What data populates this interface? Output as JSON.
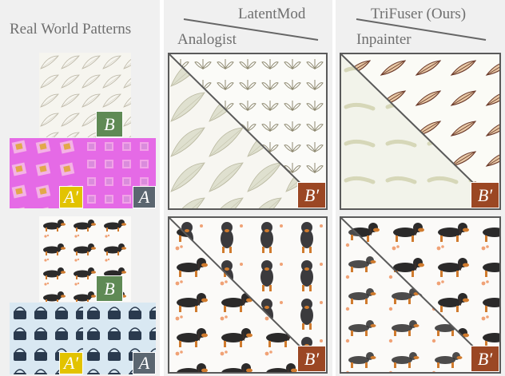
{
  "headers": {
    "real_world": "Real World Patterns",
    "latentmod": "LatentMod",
    "analogist": "Analogist",
    "trifuser": "TriFuser (Ours)",
    "inpainter": "Inpainter"
  },
  "labels": {
    "b": "B",
    "a_prime": "A′",
    "a": "A",
    "b_prime": "B′"
  },
  "colors": {
    "label_b": "#5f8a55",
    "label_a_prime": "#e2c300",
    "label_a": "#5b6670",
    "label_b_prime": "#9b4724",
    "column_background": "#f0f0f0",
    "frame_border": "#5a5a5a"
  },
  "rows": [
    {
      "b_pattern": "leaf-outline-pattern",
      "a_prime_pattern": "magenta-tile-pattern",
      "a_pattern": "magenta-square-pattern"
    },
    {
      "b_pattern": "dachshund-pattern",
      "a_prime_pattern": "handbag-pattern",
      "a_pattern": "handbag-pattern"
    }
  ]
}
